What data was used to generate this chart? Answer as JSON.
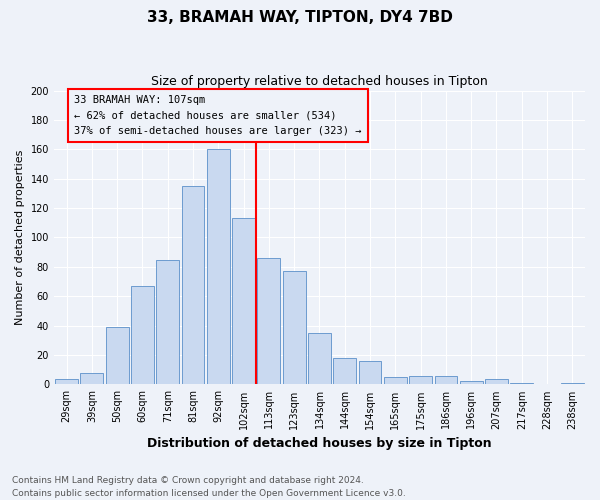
{
  "title": "33, BRAMAH WAY, TIPTON, DY4 7BD",
  "subtitle": "Size of property relative to detached houses in Tipton",
  "xlabel": "Distribution of detached houses by size in Tipton",
  "ylabel": "Number of detached properties",
  "bar_labels": [
    "29sqm",
    "39sqm",
    "50sqm",
    "60sqm",
    "71sqm",
    "81sqm",
    "92sqm",
    "102sqm",
    "113sqm",
    "123sqm",
    "134sqm",
    "144sqm",
    "154sqm",
    "165sqm",
    "175sqm",
    "186sqm",
    "196sqm",
    "207sqm",
    "217sqm",
    "228sqm",
    "238sqm"
  ],
  "bar_values": [
    4,
    8,
    39,
    67,
    85,
    135,
    160,
    113,
    86,
    77,
    35,
    18,
    16,
    5,
    6,
    6,
    2,
    4,
    1,
    0,
    1
  ],
  "bar_color": "#c9d9f0",
  "bar_edge_color": "#5b8fc9",
  "vline_x_index": 7,
  "vline_color": "red",
  "ylim": [
    0,
    200
  ],
  "yticks": [
    0,
    20,
    40,
    60,
    80,
    100,
    120,
    140,
    160,
    180,
    200
  ],
  "annotation_box_title": "33 BRAMAH WAY: 107sqm",
  "annotation_line1": "← 62% of detached houses are smaller (534)",
  "annotation_line2": "37% of semi-detached houses are larger (323) →",
  "annotation_box_edge": "red",
  "footnote1": "Contains HM Land Registry data © Crown copyright and database right 2024.",
  "footnote2": "Contains public sector information licensed under the Open Government Licence v3.0.",
  "background_color": "#eef2f9",
  "grid_color": "white",
  "title_fontsize": 11,
  "subtitle_fontsize": 9,
  "xlabel_fontsize": 9,
  "ylabel_fontsize": 8,
  "tick_fontsize": 7,
  "footnote_fontsize": 6.5
}
